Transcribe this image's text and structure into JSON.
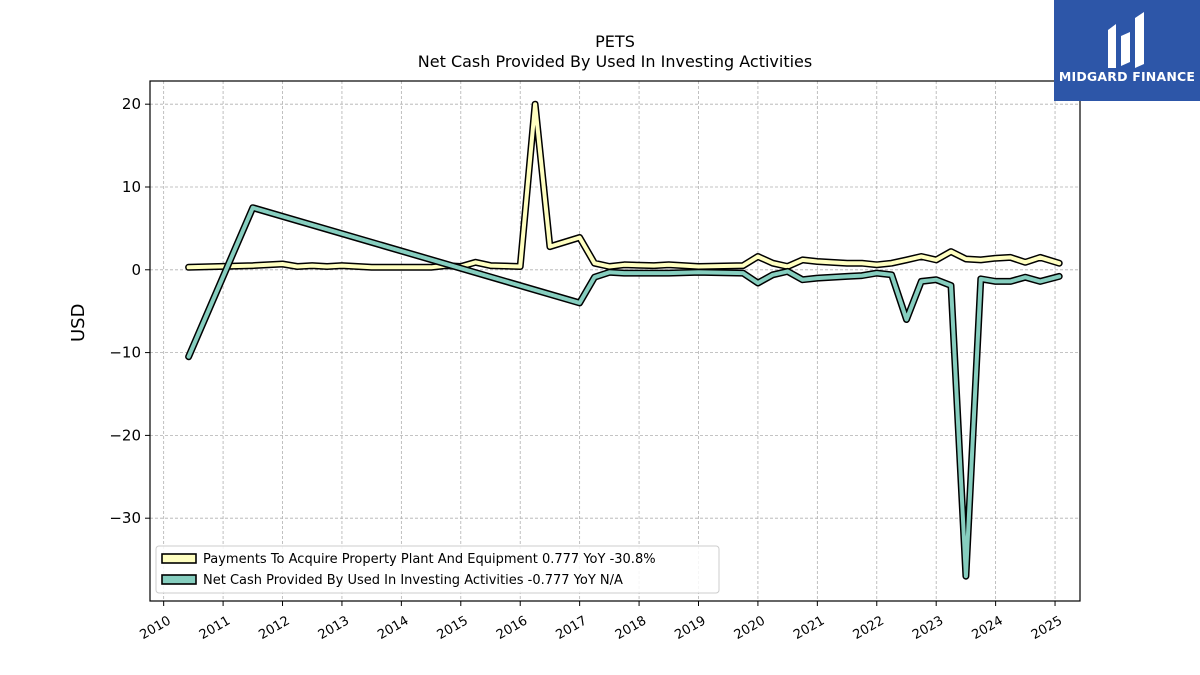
{
  "header": {
    "title": "PETS",
    "subtitle": "Net Cash Provided By Used In Investing Activities"
  },
  "brand": {
    "name": "MIDGARD FINANCE",
    "color": "#2d56a8"
  },
  "chart_data": {
    "type": "line",
    "title": "PETS",
    "subtitle": "Net Cash Provided By Used In Investing Activities",
    "ylabel": "USD",
    "xlabel": "",
    "ylim": [
      -40.0,
      22.8
    ],
    "xlim": [
      2009.77,
      2025.42
    ],
    "yticks": [
      20,
      10,
      0,
      -10,
      -20,
      -30
    ],
    "ytick_labels": [
      "20",
      "10",
      "0",
      "−10",
      "−20",
      "−30"
    ],
    "xticks": [
      2010,
      2011,
      2012,
      2013,
      2014,
      2015,
      2016,
      2017,
      2018,
      2019,
      2020,
      2021,
      2022,
      2023,
      2024,
      2025
    ],
    "xtick_labels": [
      "2010",
      "2011",
      "2012",
      "2013",
      "2014",
      "2015",
      "2016",
      "2017",
      "2018",
      "2019",
      "2020",
      "2021",
      "2022",
      "2023",
      "2024",
      "2025"
    ],
    "grid": true,
    "legend_position": "lower-left",
    "series": [
      {
        "name": "Payments To Acquire Property Plant And Equipment  0.777 YoY -30.8%",
        "color": "#ffffc1",
        "points": [
          [
            2010.42,
            0.3
          ],
          [
            2011.5,
            0.5
          ],
          [
            2012.0,
            0.7
          ],
          [
            2012.25,
            0.4
          ],
          [
            2012.5,
            0.5
          ],
          [
            2012.75,
            0.4
          ],
          [
            2013.0,
            0.5
          ],
          [
            2013.5,
            0.3
          ],
          [
            2014.0,
            0.3
          ],
          [
            2014.5,
            0.3
          ],
          [
            2014.75,
            0.5
          ],
          [
            2015.0,
            0.4
          ],
          [
            2015.25,
            0.9
          ],
          [
            2015.5,
            0.5
          ],
          [
            2016.0,
            0.4
          ],
          [
            2016.25,
            20.0
          ],
          [
            2016.5,
            2.8
          ],
          [
            2017.0,
            3.9
          ],
          [
            2017.25,
            0.8
          ],
          [
            2017.5,
            0.4
          ],
          [
            2017.75,
            0.6
          ],
          [
            2018.25,
            0.5
          ],
          [
            2018.5,
            0.6
          ],
          [
            2019.0,
            0.4
          ],
          [
            2019.75,
            0.5
          ],
          [
            2020.0,
            1.6
          ],
          [
            2020.25,
            0.8
          ],
          [
            2020.5,
            0.4
          ],
          [
            2020.75,
            1.2
          ],
          [
            2021.0,
            1.0
          ],
          [
            2021.5,
            0.8
          ],
          [
            2021.75,
            0.8
          ],
          [
            2022.0,
            0.6
          ],
          [
            2022.25,
            0.8
          ],
          [
            2022.5,
            1.2
          ],
          [
            2022.75,
            1.6
          ],
          [
            2023.0,
            1.2
          ],
          [
            2023.25,
            2.2
          ],
          [
            2023.5,
            1.3
          ],
          [
            2023.75,
            1.2
          ],
          [
            2024.0,
            1.4
          ],
          [
            2024.25,
            1.5
          ],
          [
            2024.5,
            0.9
          ],
          [
            2024.75,
            1.5
          ],
          [
            2025.07,
            0.8
          ]
        ]
      },
      {
        "name": "Net Cash Provided By Used In Investing Activities  -0.777 YoY N/A",
        "color": "#86cebf",
        "points": [
          [
            2010.42,
            -10.5
          ],
          [
            2011.5,
            7.5
          ],
          [
            2017.0,
            -4.0
          ],
          [
            2017.25,
            -0.9
          ],
          [
            2017.5,
            -0.3
          ],
          [
            2017.75,
            -0.4
          ],
          [
            2018.25,
            -0.4
          ],
          [
            2018.5,
            -0.4
          ],
          [
            2019.0,
            -0.3
          ],
          [
            2019.75,
            -0.4
          ],
          [
            2020.0,
            -1.6
          ],
          [
            2020.25,
            -0.6
          ],
          [
            2020.5,
            -0.2
          ],
          [
            2020.75,
            -1.2
          ],
          [
            2021.0,
            -1.0
          ],
          [
            2021.5,
            -0.8
          ],
          [
            2021.75,
            -0.7
          ],
          [
            2022.0,
            -0.4
          ],
          [
            2022.25,
            -0.6
          ],
          [
            2022.5,
            -6.0
          ],
          [
            2022.75,
            -1.4
          ],
          [
            2023.0,
            -1.2
          ],
          [
            2023.25,
            -1.9
          ],
          [
            2023.5,
            -37.0
          ],
          [
            2023.75,
            -1.1
          ],
          [
            2024.0,
            -1.4
          ],
          [
            2024.25,
            -1.4
          ],
          [
            2024.5,
            -0.9
          ],
          [
            2024.75,
            -1.4
          ],
          [
            2025.07,
            -0.8
          ]
        ]
      }
    ]
  }
}
